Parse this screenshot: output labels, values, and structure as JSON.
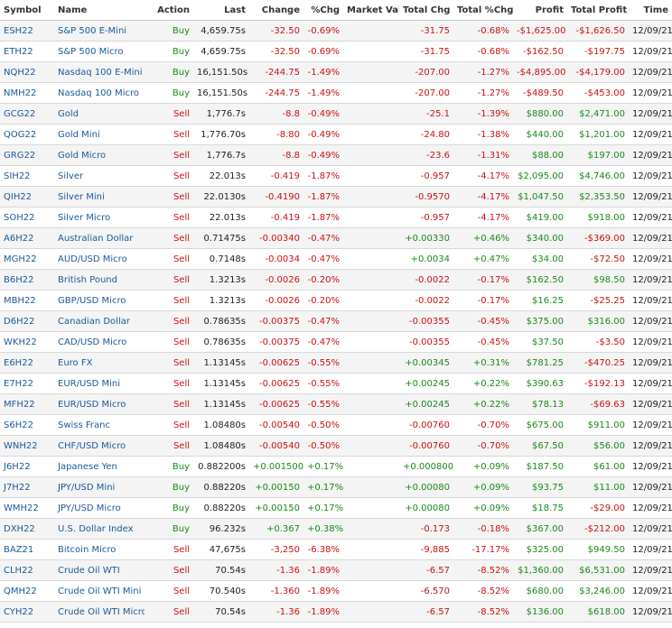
{
  "colors": {
    "negative": "#cc1111",
    "positive": "#1a8a1a",
    "link": "#1a5a9a"
  },
  "headers": [
    "Symbol",
    "Name",
    "Action",
    "Last",
    "Change",
    "%Chg",
    "Market Val",
    "Total Chg",
    "Total %Chg",
    "Profit",
    "Total Profit",
    "Time"
  ],
  "rows": [
    [
      "ESH22",
      "S&P 500 E-Mini",
      "Buy",
      "4,659.75s",
      "-32.50",
      "-0.69%",
      "",
      "-31.75",
      "-0.68%",
      "-$1,625.00",
      "-$1,626.50",
      "12/09/21"
    ],
    [
      "ETH22",
      "S&P 500 Micro",
      "Buy",
      "4,659.75s",
      "-32.50",
      "-0.69%",
      "",
      "-31.75",
      "-0.68%",
      "-$162.50",
      "-$197.75",
      "12/09/21"
    ],
    [
      "NQH22",
      "Nasdaq 100 E-Mini",
      "Buy",
      "16,151.50s",
      "-244.75",
      "-1.49%",
      "",
      "-207.00",
      "-1.27%",
      "-$4,895.00",
      "-$4,179.00",
      "12/09/21"
    ],
    [
      "NMH22",
      "Nasdaq 100 Micro",
      "Buy",
      "16,151.50s",
      "-244.75",
      "-1.49%",
      "",
      "-207.00",
      "-1.27%",
      "-$489.50",
      "-$453.00",
      "12/09/21"
    ],
    [
      "GCG22",
      "Gold",
      "Sell",
      "1,776.7s",
      "-8.8",
      "-0.49%",
      "",
      "-25.1",
      "-1.39%",
      "$880.00",
      "$2,471.00",
      "12/09/21"
    ],
    [
      "QOG22",
      "Gold Mini",
      "Sell",
      "1,776.70s",
      "-8.80",
      "-0.49%",
      "",
      "-24.80",
      "-1.38%",
      "$440.00",
      "$1,201.00",
      "12/09/21"
    ],
    [
      "GRG22",
      "Gold Micro",
      "Sell",
      "1,776.7s",
      "-8.8",
      "-0.49%",
      "",
      "-23.6",
      "-1.31%",
      "$88.00",
      "$197.00",
      "12/09/21"
    ],
    [
      "SIH22",
      "Silver",
      "Sell",
      "22.013s",
      "-0.419",
      "-1.87%",
      "",
      "-0.957",
      "-4.17%",
      "$2,095.00",
      "$4,746.00",
      "12/09/21"
    ],
    [
      "QIH22",
      "Silver Mini",
      "Sell",
      "22.0130s",
      "-0.4190",
      "-1.87%",
      "",
      "-0.9570",
      "-4.17%",
      "$1,047.50",
      "$2,353.50",
      "12/09/21"
    ],
    [
      "SOH22",
      "Silver Micro",
      "Sell",
      "22.013s",
      "-0.419",
      "-1.87%",
      "",
      "-0.957",
      "-4.17%",
      "$419.00",
      "$918.00",
      "12/09/21"
    ],
    [
      "A6H22",
      "Australian Dollar",
      "Sell",
      "0.71475s",
      "-0.00340",
      "-0.47%",
      "",
      "+0.00330",
      "+0.46%",
      "$340.00",
      "-$369.00",
      "12/09/21"
    ],
    [
      "MGH22",
      "AUD/USD Micro",
      "Sell",
      "0.7148s",
      "-0.0034",
      "-0.47%",
      "",
      "+0.0034",
      "+0.47%",
      "$34.00",
      "-$72.50",
      "12/09/21"
    ],
    [
      "B6H22",
      "British Pound",
      "Sell",
      "1.3213s",
      "-0.0026",
      "-0.20%",
      "",
      "-0.0022",
      "-0.17%",
      "$162.50",
      "$98.50",
      "12/09/21"
    ],
    [
      "MBH22",
      "GBP/USD Micro",
      "Sell",
      "1.3213s",
      "-0.0026",
      "-0.20%",
      "",
      "-0.0022",
      "-0.17%",
      "$16.25",
      "-$25.25",
      "12/09/21"
    ],
    [
      "D6H22",
      "Canadian Dollar",
      "Sell",
      "0.78635s",
      "-0.00375",
      "-0.47%",
      "",
      "-0.00355",
      "-0.45%",
      "$375.00",
      "$316.00",
      "12/09/21"
    ],
    [
      "WKH22",
      "CAD/USD Micro",
      "Sell",
      "0.78635s",
      "-0.00375",
      "-0.47%",
      "",
      "-0.00355",
      "-0.45%",
      "$37.50",
      "-$3.50",
      "12/09/21"
    ],
    [
      "E6H22",
      "Euro FX",
      "Sell",
      "1.13145s",
      "-0.00625",
      "-0.55%",
      "",
      "+0.00345",
      "+0.31%",
      "$781.25",
      "-$470.25",
      "12/09/21"
    ],
    [
      "E7H22",
      "EUR/USD Mini",
      "Sell",
      "1.13145s",
      "-0.00625",
      "-0.55%",
      "",
      "+0.00245",
      "+0.22%",
      "$390.63",
      "-$192.13",
      "12/09/21"
    ],
    [
      "MFH22",
      "EUR/USD Micro",
      "Sell",
      "1.13145s",
      "-0.00625",
      "-0.55%",
      "",
      "+0.00245",
      "+0.22%",
      "$78.13",
      "-$69.63",
      "12/09/21"
    ],
    [
      "S6H22",
      "Swiss Franc",
      "Sell",
      "1.08480s",
      "-0.00540",
      "-0.50%",
      "",
      "-0.00760",
      "-0.70%",
      "$675.00",
      "$911.00",
      "12/09/21"
    ],
    [
      "WNH22",
      "CHF/USD Micro",
      "Sell",
      "1.08480s",
      "-0.00540",
      "-0.50%",
      "",
      "-0.00760",
      "-0.70%",
      "$67.50",
      "$56.00",
      "12/09/21"
    ],
    [
      "J6H22",
      "Japanese Yen",
      "Buy",
      "0.882200s",
      "+0.001500",
      "+0.17%",
      "",
      "+0.000800",
      "+0.09%",
      "$187.50",
      "$61.00",
      "12/09/21"
    ],
    [
      "J7H22",
      "JPY/USD Mini",
      "Buy",
      "0.88220s",
      "+0.00150",
      "+0.17%",
      "",
      "+0.00080",
      "+0.09%",
      "$93.75",
      "$11.00",
      "12/09/21"
    ],
    [
      "WMH22",
      "JPY/USD Micro",
      "Buy",
      "0.88220s",
      "+0.00150",
      "+0.17%",
      "",
      "+0.00080",
      "+0.09%",
      "$18.75",
      "-$29.00",
      "12/09/21"
    ],
    [
      "DXH22",
      "U.S. Dollar Index",
      "Buy",
      "96.232s",
      "+0.367",
      "+0.38%",
      "",
      "-0.173",
      "-0.18%",
      "$367.00",
      "-$212.00",
      "12/09/21"
    ],
    [
      "BAZ21",
      "Bitcoin Micro",
      "Sell",
      "47,675s",
      "-3,250",
      "-6.38%",
      "",
      "-9,885",
      "-17.17%",
      "$325.00",
      "$949.50",
      "12/09/21"
    ],
    [
      "CLH22",
      "Crude Oil WTI",
      "Sell",
      "70.54s",
      "-1.36",
      "-1.89%",
      "",
      "-6.57",
      "-8.52%",
      "$1,360.00",
      "$6,531.00",
      "12/09/21"
    ],
    [
      "QMH22",
      "Crude Oil WTI Mini",
      "Sell",
      "70.540s",
      "-1.360",
      "-1.89%",
      "",
      "-6.570",
      "-8.52%",
      "$680.00",
      "$3,246.00",
      "12/09/21"
    ],
    [
      "CYH22",
      "Crude Oil WTI Micro",
      "Sell",
      "70.54s",
      "-1.36",
      "-1.89%",
      "",
      "-6.57",
      "-8.52%",
      "$136.00",
      "$618.00",
      "12/09/21"
    ]
  ]
}
